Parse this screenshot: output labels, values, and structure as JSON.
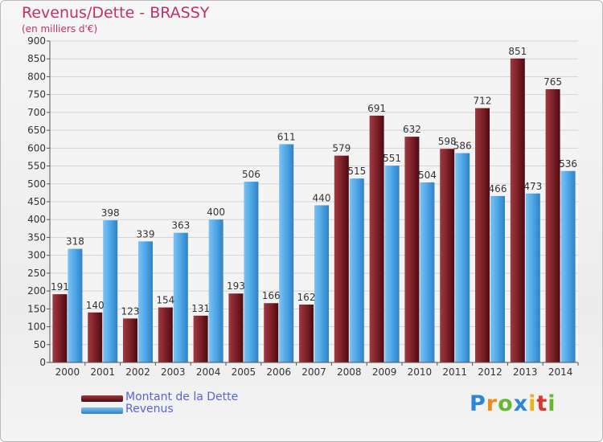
{
  "title": "Revenus/Dette - BRASSY",
  "subtitle": "(en milliers d'€)",
  "legend": {
    "debt_label": "Montant de la Dette",
    "revenue_label": "Revenus"
  },
  "logo": {
    "text": "Proxiti"
  },
  "colors": {
    "debt": "#7a1e24",
    "revenue": "#4ea6e6",
    "title": "#c0306b",
    "legend_text": "#5a63d6"
  },
  "chart_data": {
    "type": "bar",
    "categories": [
      "2000",
      "2001",
      "2002",
      "2003",
      "2004",
      "2005",
      "2006",
      "2007",
      "2008",
      "2009",
      "2010",
      "2011",
      "2012",
      "2013",
      "2014"
    ],
    "series": [
      {
        "name": "Montant de la Dette",
        "values": [
          191,
          140,
          123,
          154,
          131,
          193,
          166,
          162,
          579,
          691,
          632,
          598,
          712,
          851,
          765
        ]
      },
      {
        "name": "Revenus",
        "values": [
          318,
          398,
          339,
          363,
          400,
          506,
          611,
          440,
          515,
          551,
          504,
          586,
          466,
          473,
          536
        ]
      }
    ],
    "ylim": [
      0,
      900
    ],
    "yticks": [
      0,
      50,
      100,
      150,
      200,
      250,
      300,
      350,
      400,
      450,
      500,
      550,
      600,
      650,
      700,
      750,
      800,
      850,
      900
    ],
    "grid": true,
    "legend_position": "bottom-left"
  }
}
